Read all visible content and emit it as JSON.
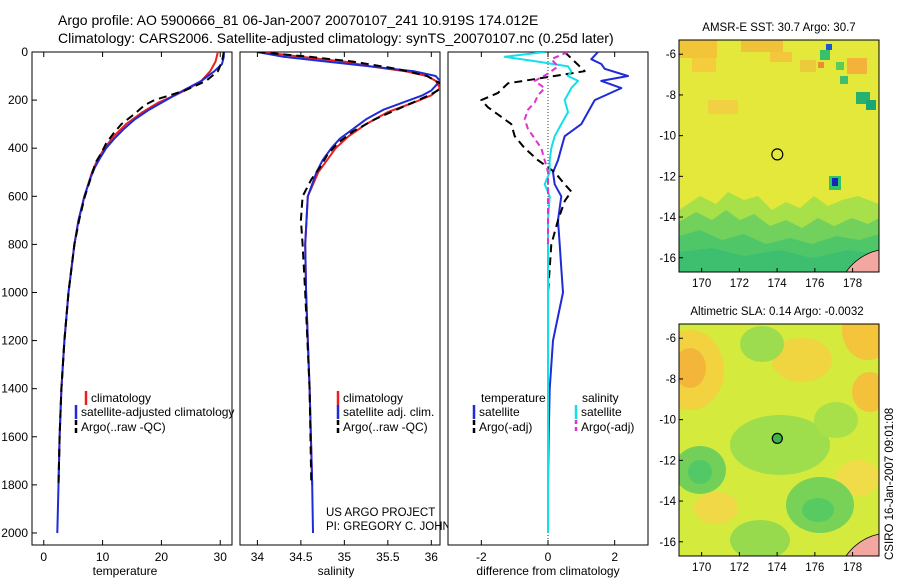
{
  "title": {
    "line1": "Argo profile: AO 5900666_81 06-Jan-2007 20070107_241 10.919S 174.012E",
    "line2": "Climatology: CARS2006. Satellite-adjusted climatology: synTS_20070107.nc (0.25d later)"
  },
  "credits": {
    "project": "US ARGO PROJECT",
    "pi": "PI: GREGORY C. JOHNSON",
    "csiro": "CSIRO 16-Jan-2007 09:01:08"
  },
  "chart_data": [
    {
      "id": "temperature",
      "type": "line",
      "xlabel": "temperature",
      "ylabel": "",
      "xlim": [
        -2,
        32
      ],
      "ylim": [
        2050,
        0
      ],
      "xticks": [
        0,
        10,
        20,
        30
      ],
      "yticks": [
        0,
        200,
        400,
        600,
        800,
        1000,
        1200,
        1400,
        1600,
        1800,
        2000
      ],
      "legend": [
        "climatology",
        "satellite-adjusted climatology",
        "Argo(..raw -QC)"
      ],
      "legend_position": "bottom-center",
      "series": [
        {
          "name": "climatology",
          "color": "#e8201e",
          "dash": "solid",
          "depth": [
            0,
            40,
            80,
            120,
            150,
            180,
            210,
            250,
            300,
            350,
            400,
            450,
            500,
            600,
            700,
            800,
            1000,
            1200,
            1400,
            1600,
            1800
          ],
          "values": [
            29.6,
            29.2,
            28.3,
            26.8,
            24.8,
            22.3,
            19.5,
            16.8,
            14.0,
            11.9,
            10.3,
            9.1,
            8.2,
            6.9,
            5.9,
            5.2,
            4.2,
            3.5,
            3.0,
            2.7,
            2.5
          ]
        },
        {
          "name": "satellite-adjusted climatology",
          "color": "#1f2bd6",
          "dash": "solid",
          "depth": [
            0,
            20,
            50,
            80,
            120,
            160,
            200,
            240,
            280,
            320,
            360,
            400,
            440,
            480,
            520,
            600,
            700,
            800,
            1000,
            1200,
            1400,
            1600,
            1800,
            2000
          ],
          "values": [
            30.6,
            30.6,
            30.3,
            29.0,
            26.8,
            23.7,
            20.8,
            17.9,
            15.5,
            13.6,
            12.0,
            10.6,
            9.6,
            8.7,
            8.0,
            6.9,
            5.9,
            5.2,
            4.2,
            3.5,
            3.0,
            2.7,
            2.5,
            2.3
          ]
        },
        {
          "name": "Argo(..raw -QC)",
          "color": "#000000",
          "dash": "8 5",
          "depth": [
            0,
            40,
            80,
            120,
            160,
            200,
            220,
            260,
            300,
            340,
            380,
            420,
            460,
            500,
            600,
            700,
            800,
            1000,
            1200,
            1400,
            1600,
            1800
          ],
          "values": [
            30.6,
            30.3,
            29.6,
            27.6,
            24.0,
            18.8,
            17.2,
            15.3,
            13.2,
            11.8,
            10.6,
            9.8,
            8.8,
            8.3,
            7.0,
            6.0,
            5.2,
            4.2,
            3.5,
            3.0,
            2.7,
            2.5
          ]
        }
      ]
    },
    {
      "id": "salinity",
      "type": "line",
      "xlabel": "salinity",
      "ylabel": "",
      "xlim": [
        33.8,
        36.1
      ],
      "ylim": [
        2050,
        0
      ],
      "xticks": [
        34,
        34.5,
        35,
        35.5,
        36
      ],
      "legend": [
        "climatology",
        "satellite adj. clim.",
        "Argo(..raw -QC)"
      ],
      "legend_position": "bottom-right",
      "series": [
        {
          "name": "climatology",
          "color": "#e8201e",
          "dash": "solid",
          "depth": [
            0,
            20,
            40,
            60,
            80,
            100,
            120,
            150,
            180,
            210,
            250,
            300,
            350,
            400,
            450,
            500,
            600,
            800,
            1000,
            1400,
            1800
          ],
          "values": [
            34.05,
            34.5,
            35.0,
            35.3,
            35.7,
            35.95,
            36.05,
            36.1,
            36.0,
            35.8,
            35.5,
            35.25,
            35.05,
            34.9,
            34.8,
            34.7,
            34.58,
            34.55,
            34.56,
            34.6,
            34.63
          ]
        },
        {
          "name": "satellite adj. clim.",
          "color": "#1f2bd6",
          "dash": "solid",
          "depth": [
            0,
            20,
            40,
            60,
            80,
            100,
            120,
            140,
            160,
            180,
            200,
            240,
            280,
            320,
            360,
            400,
            450,
            500,
            600,
            800,
            1000,
            1400,
            1800,
            2000
          ],
          "values": [
            34.0,
            34.3,
            34.8,
            35.3,
            35.8,
            36.05,
            36.1,
            36.05,
            36.0,
            35.9,
            35.75,
            35.45,
            35.25,
            35.1,
            34.95,
            34.85,
            34.75,
            34.68,
            34.58,
            34.55,
            34.56,
            34.6,
            34.63,
            34.64
          ]
        },
        {
          "name": "Argo(..raw -QC)",
          "color": "#000000",
          "dash": "8 5",
          "depth": [
            0,
            20,
            40,
            70,
            100,
            130,
            150,
            175,
            200,
            240,
            280,
            330,
            380,
            430,
            480,
            530,
            600,
            700,
            800,
            1000,
            1400,
            1800
          ],
          "values": [
            34.0,
            34.6,
            35.1,
            35.6,
            35.95,
            36.1,
            36.12,
            36.0,
            35.85,
            35.6,
            35.35,
            35.1,
            34.92,
            34.8,
            34.72,
            34.62,
            34.52,
            34.5,
            34.52,
            34.55,
            34.6,
            34.62
          ]
        }
      ]
    },
    {
      "id": "difference",
      "type": "line",
      "xlabel": "difference from climatology",
      "ylabel": "",
      "xlim": [
        -3,
        3
      ],
      "ylim": [
        2050,
        0
      ],
      "xticks": [
        -2,
        0,
        2
      ],
      "legend_left_title": "temperature",
      "legend_right_title": "salinity",
      "legend": [
        "satellite",
        "Argo(-adj)",
        "satellite",
        "Argo(-adj)"
      ],
      "legend_position": "bottom",
      "series": [
        {
          "name": "temperature satellite",
          "color": "#1f2bd6",
          "dash": "solid",
          "depth": [
            0,
            30,
            50,
            70,
            100,
            120,
            150,
            200,
            250,
            300,
            350,
            400,
            450,
            500,
            550,
            600,
            700,
            800,
            900,
            1000,
            1100,
            1200,
            1400,
            1600,
            1800,
            2000
          ],
          "values": [
            1.5,
            1.3,
            1.6,
            1.7,
            2.4,
            1.6,
            2.2,
            1.4,
            1.2,
            1.0,
            0.5,
            0.4,
            0.3,
            0.15,
            0.2,
            0.4,
            0.3,
            0.35,
            0.4,
            0.45,
            0.3,
            0.15,
            0.05,
            0.02,
            0.0,
            0.0
          ]
        },
        {
          "name": "temperature Argo(-adj)",
          "color": "#000000",
          "dash": "8 5",
          "depth": [
            0,
            40,
            80,
            100,
            130,
            170,
            200,
            230,
            260,
            300,
            350,
            400,
            450,
            500,
            550,
            580,
            620,
            700,
            800,
            900,
            1000,
            1200,
            1400,
            1600,
            1800
          ],
          "values": [
            0.5,
            0.8,
            1.1,
            0.2,
            -1.2,
            -1.5,
            -2.0,
            -1.8,
            -1.5,
            -1.1,
            -1.0,
            -0.7,
            -0.3,
            0.2,
            0.5,
            0.7,
            0.5,
            0.3,
            0.1,
            0.05,
            0.0,
            0.0,
            0.0,
            0.0,
            0.0
          ]
        },
        {
          "name": "salinity satellite",
          "color": "#12e0e8",
          "dash": "solid",
          "depth": [
            0,
            20,
            40,
            60,
            80,
            100,
            120,
            150,
            200,
            250,
            300,
            350,
            400,
            450,
            500,
            550,
            600,
            700,
            800,
            1000,
            1200,
            1500,
            1800,
            2000
          ],
          "values": [
            -0.1,
            -1.3,
            -0.3,
            0.6,
            0.7,
            0.6,
            0.9,
            0.7,
            0.5,
            0.6,
            0.4,
            0.2,
            0.1,
            0.05,
            0.05,
            -0.1,
            0.05,
            0.0,
            0.0,
            0.0,
            0.0,
            0.0,
            0.0,
            0.0
          ]
        },
        {
          "name": "salinity Argo(-adj)",
          "color": "#e030d0",
          "dash": "6 4",
          "depth": [
            0,
            30,
            60,
            90,
            120,
            150,
            180,
            210,
            240,
            280,
            320,
            360,
            400,
            450,
            500,
            550,
            600,
            700,
            800
          ],
          "values": [
            0.6,
            0.1,
            0.3,
            0.0,
            -0.4,
            -0.1,
            -0.3,
            -0.4,
            -0.6,
            -0.7,
            -0.6,
            -0.4,
            -0.2,
            -0.1,
            0.0,
            0.0,
            0.0,
            0.0,
            0.0
          ]
        }
      ]
    },
    {
      "id": "sst_map",
      "type": "heatmap",
      "title": "AMSR-E SST: 30.7 Argo: 30.7",
      "xticks": [
        170,
        172,
        174,
        176,
        178
      ],
      "yticks": [
        -6,
        -8,
        -10,
        -12,
        -14,
        -16
      ],
      "xlim": [
        168.8,
        179.4
      ],
      "ylim": [
        -16.7,
        -5.3
      ],
      "marker": {
        "lon": 174.012,
        "lat": -10.919
      }
    },
    {
      "id": "sla_map",
      "type": "heatmap",
      "title": "Altimetric SLA: 0.14 Argo: -0.0032",
      "xticks": [
        170,
        172,
        174,
        176,
        178
      ],
      "yticks": [
        -6,
        -8,
        -10,
        -12,
        -14,
        -16
      ],
      "xlim": [
        168.8,
        179.4
      ],
      "ylim": [
        -16.7,
        -5.3
      ],
      "marker": {
        "lon": 174.012,
        "lat": -10.919
      }
    }
  ]
}
